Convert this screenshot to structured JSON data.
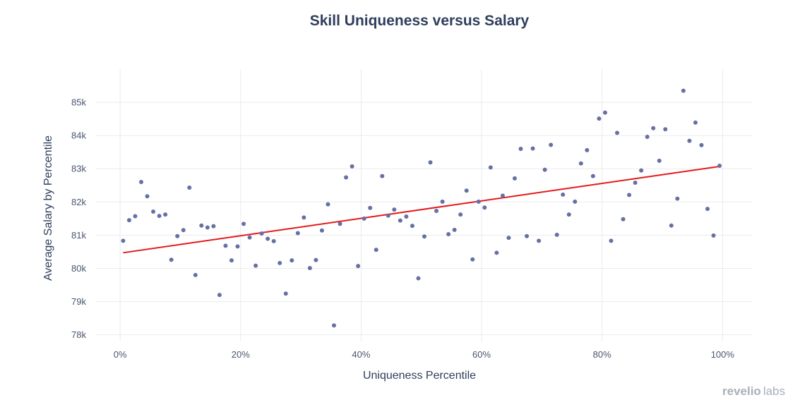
{
  "chart_data": {
    "type": "scatter",
    "title": "Skill Uniqueness versus Salary",
    "xlabel": "Uniqueness Percentile",
    "ylabel": "Average Salary by Percentile",
    "xlim": [
      -4,
      105
    ],
    "ylim": [
      77.8,
      86.0
    ],
    "x_ticks": [
      0,
      20,
      40,
      60,
      80,
      100
    ],
    "x_tick_labels": [
      "0%",
      "20%",
      "40%",
      "60%",
      "80%",
      "100%"
    ],
    "y_ticks": [
      78,
      79,
      80,
      81,
      82,
      83,
      84,
      85
    ],
    "y_tick_labels": [
      "78k",
      "79k",
      "80k",
      "81k",
      "82k",
      "83k",
      "84k",
      "85k"
    ],
    "grid": true,
    "legend": "none",
    "point_color": "#6670a4",
    "trendline": {
      "color": "#e41a1c",
      "x": [
        0.5,
        99.5
      ],
      "y": [
        80.47,
        83.07
      ]
    },
    "x": [
      0.5,
      1.5,
      2.5,
      3.5,
      4.5,
      5.5,
      6.5,
      7.5,
      8.5,
      9.5,
      10.5,
      11.5,
      12.5,
      13.5,
      14.5,
      15.5,
      16.5,
      17.5,
      18.5,
      19.5,
      20.5,
      21.5,
      22.5,
      23.5,
      24.5,
      25.5,
      26.5,
      27.5,
      28.5,
      29.5,
      30.5,
      31.5,
      32.5,
      33.5,
      34.5,
      35.5,
      36.5,
      37.5,
      38.5,
      39.5,
      40.5,
      41.5,
      42.5,
      43.5,
      44.5,
      45.5,
      46.5,
      47.5,
      48.5,
      49.5,
      50.5,
      51.5,
      52.5,
      53.5,
      54.5,
      55.5,
      56.5,
      57.5,
      58.5,
      59.5,
      60.5,
      61.5,
      62.5,
      63.5,
      64.5,
      65.5,
      66.5,
      67.5,
      68.5,
      69.5,
      70.5,
      71.5,
      72.5,
      73.5,
      74.5,
      75.5,
      76.5,
      77.5,
      78.5,
      79.5,
      80.5,
      81.5,
      82.5,
      83.5,
      84.5,
      85.5,
      86.5,
      87.5,
      88.5,
      89.5,
      90.5,
      91.5,
      92.5,
      93.5,
      94.5,
      95.5,
      96.5,
      97.5,
      98.5,
      99.5
    ],
    "y": [
      80.83,
      81.45,
      81.57,
      82.6,
      82.17,
      81.71,
      81.58,
      81.62,
      80.26,
      80.97,
      81.15,
      82.43,
      79.8,
      81.29,
      81.23,
      81.27,
      79.2,
      80.68,
      80.24,
      80.66,
      81.34,
      80.93,
      80.08,
      81.05,
      80.89,
      80.82,
      80.16,
      79.24,
      80.24,
      81.06,
      81.53,
      80.01,
      80.25,
      81.14,
      81.93,
      78.28,
      81.34,
      82.74,
      83.07,
      80.07,
      81.5,
      81.82,
      80.56,
      82.78,
      81.59,
      81.77,
      81.44,
      81.56,
      81.28,
      79.7,
      80.96,
      83.19,
      81.73,
      82.01,
      81.03,
      81.16,
      81.62,
      82.34,
      80.27,
      82.01,
      81.83,
      83.04,
      80.47,
      82.19,
      80.92,
      82.71,
      83.6,
      80.97,
      83.61,
      80.83,
      82.97,
      83.72,
      81.01,
      82.22,
      81.62,
      82.01,
      83.16,
      83.56,
      82.78,
      84.51,
      84.69,
      80.83,
      84.08,
      81.48,
      82.21,
      82.58,
      82.95,
      83.96,
      84.22,
      83.24,
      84.19,
      81.29,
      82.1,
      85.35,
      83.84,
      84.39,
      83.71,
      81.79,
      80.99,
      83.09
    ]
  },
  "branding": {
    "logo_part1": "revelio",
    "logo_part2": "labs"
  }
}
